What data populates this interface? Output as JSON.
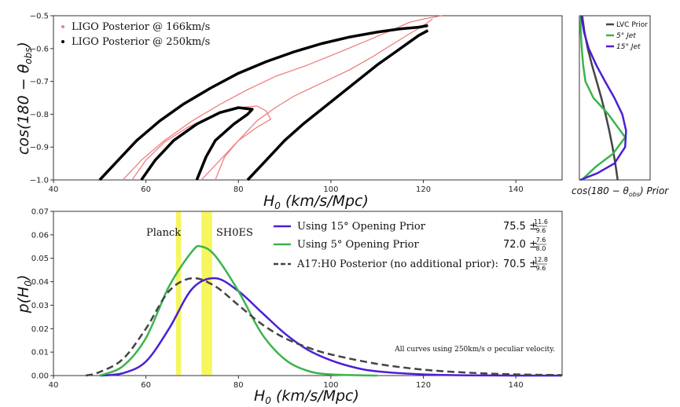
{
  "chart_data": [
    {
      "type": "contour",
      "xlabel": "H₀ (km/s/Mpc)",
      "xlabel_main": "H",
      "xlabel_sub": "0",
      "xlabel_rest": " (km/s/Mpc)",
      "ylabel": "cos(180 − θobs)",
      "ylabel_main": "cos(180 − θ",
      "ylabel_sub": "obs",
      "ylabel_rest": ")",
      "xlim": [
        40,
        150
      ],
      "ylim": [
        -1.0,
        -0.5
      ],
      "xticks": [
        "40",
        "60",
        "80",
        "100",
        "120",
        "140"
      ],
      "yticks": [
        "−1.0",
        "−0.9",
        "−0.8",
        "−0.7",
        "−0.6",
        "−0.5"
      ],
      "legend_position": "top-left",
      "series": [
        {
          "name": "LIGO Posterior @ 166km/s",
          "color": "#f08080",
          "contours": [
            [
              [
                55,
                -1.0
              ],
              [
                59,
                -0.94
              ],
              [
                64,
                -0.88
              ],
              [
                70,
                -0.82
              ],
              [
                76,
                -0.77
              ],
              [
                82,
                -0.725
              ],
              [
                88,
                -0.685
              ],
              [
                95,
                -0.65
              ],
              [
                102,
                -0.61
              ],
              [
                108,
                -0.575
              ],
              [
                113,
                -0.545
              ],
              [
                117,
                -0.52
              ],
              [
                120,
                -0.51
              ],
              [
                124,
                -0.5
              ]
            ],
            [
              [
                72,
                -1.0
              ],
              [
                76,
                -0.94
              ],
              [
                80,
                -0.88
              ],
              [
                84,
                -0.82
              ],
              [
                88,
                -0.78
              ],
              [
                92,
                -0.745
              ],
              [
                98,
                -0.705
              ],
              [
                104,
                -0.665
              ],
              [
                109,
                -0.625
              ],
              [
                113,
                -0.59
              ],
              [
                117,
                -0.555
              ],
              [
                120,
                -0.53
              ],
              [
                122,
                -0.51
              ]
            ],
            [
              [
                57,
                -1.0
              ],
              [
                60,
                -0.94
              ],
              [
                64,
                -0.885
              ],
              [
                69,
                -0.84
              ],
              [
                75,
                -0.8
              ],
              [
                80,
                -0.78
              ],
              [
                84,
                -0.775
              ],
              [
                86,
                -0.79
              ],
              [
                87,
                -0.815
              ],
              [
                84,
                -0.84
              ],
              [
                80,
                -0.88
              ],
              [
                77,
                -0.93
              ],
              [
                75,
                -1.0
              ]
            ]
          ]
        },
        {
          "name": "LIGO Posterior @ 250km/s",
          "color": "#000000",
          "contours": [
            [
              [
                50,
                -1.0
              ],
              [
                54,
                -0.94
              ],
              [
                58,
                -0.88
              ],
              [
                63,
                -0.82
              ],
              [
                68,
                -0.77
              ],
              [
                74,
                -0.72
              ],
              [
                80,
                -0.675
              ],
              [
                86,
                -0.64
              ],
              [
                92,
                -0.61
              ],
              [
                98,
                -0.585
              ],
              [
                104,
                -0.565
              ],
              [
                110,
                -0.55
              ],
              [
                115,
                -0.54
              ],
              [
                119,
                -0.535
              ],
              [
                121,
                -0.53
              ]
            ],
            [
              [
                82,
                -1.0
              ],
              [
                86,
                -0.94
              ],
              [
                90,
                -0.88
              ],
              [
                94,
                -0.83
              ],
              [
                98,
                -0.785
              ],
              [
                102,
                -0.74
              ],
              [
                106,
                -0.695
              ],
              [
                110,
                -0.65
              ],
              [
                114,
                -0.61
              ],
              [
                117,
                -0.58
              ],
              [
                119,
                -0.56
              ],
              [
                121,
                -0.545
              ]
            ],
            [
              [
                59,
                -1.0
              ],
              [
                62,
                -0.94
              ],
              [
                66,
                -0.88
              ],
              [
                71,
                -0.83
              ],
              [
                76,
                -0.795
              ],
              [
                80,
                -0.78
              ],
              [
                83,
                -0.785
              ],
              [
                82,
                -0.8
              ],
              [
                79,
                -0.83
              ],
              [
                75,
                -0.88
              ],
              [
                73,
                -0.93
              ],
              [
                71,
                -1.0
              ]
            ]
          ]
        }
      ]
    },
    {
      "type": "line",
      "xlabel": "cos(180 − θobs) Prior",
      "xlabel_main": "cos(180 − θ",
      "xlabel_sub": "obs",
      "xlabel_rest": ") Prior",
      "ylim": [
        -1.0,
        -0.5
      ],
      "legend_position": "top-right",
      "series": [
        {
          "name": "LVC Prior",
          "color": "#444444",
          "x": [
            0.06,
            0.11,
            0.18,
            0.27,
            0.37,
            0.47,
            0.56,
            0.64,
            0.71,
            0.77,
            0.82
          ],
          "y": [
            -0.5,
            -0.55,
            -0.6,
            -0.65,
            -0.7,
            -0.75,
            -0.8,
            -0.85,
            -0.9,
            -0.95,
            -1.0
          ]
        },
        {
          "name": "5° Jet",
          "color": "#3cb44b",
          "x": [
            0.02,
            0.03,
            0.05,
            0.08,
            0.13,
            0.3,
            0.62,
            0.98,
            0.72,
            0.35,
            0.05
          ],
          "y": [
            -0.5,
            -0.55,
            -0.6,
            -0.65,
            -0.7,
            -0.75,
            -0.8,
            -0.87,
            -0.92,
            -0.96,
            -1.0
          ]
        },
        {
          "name": "15° Jet",
          "color": "#4b1fd6",
          "x": [
            0.04,
            0.1,
            0.2,
            0.36,
            0.55,
            0.75,
            0.92,
            1.0,
            0.98,
            0.75,
            0.38,
            0.02
          ],
          "y": [
            -0.5,
            -0.55,
            -0.6,
            -0.65,
            -0.7,
            -0.75,
            -0.8,
            -0.85,
            -0.9,
            -0.95,
            -0.98,
            -1.0
          ]
        }
      ]
    },
    {
      "type": "line",
      "xlabel": "H₀ (km/s/Mpc)",
      "xlabel_main": "H",
      "xlabel_sub": "0",
      "xlabel_rest": " (km/s/Mpc)",
      "ylabel": "p(H₀)",
      "ylabel_main": "p(H",
      "ylabel_sub": "0",
      "ylabel_rest": ")",
      "xlim": [
        40,
        150
      ],
      "ylim": [
        0,
        0.07
      ],
      "xticks": [
        "40",
        "60",
        "80",
        "100",
        "120",
        "140"
      ],
      "yticks": [
        "0.00",
        "0.01",
        "0.02",
        "0.03",
        "0.04",
        "0.05",
        "0.06",
        "0.07"
      ],
      "legend_position": "top-right",
      "bands": [
        {
          "label": "Planck",
          "x0": 66.5,
          "x1": 67.6,
          "color": "#f5f542"
        },
        {
          "label": "SH0ES",
          "x0": 72.0,
          "x1": 74.3,
          "color": "#f5f542"
        }
      ],
      "series": [
        {
          "name": "Using 15° Opening Prior",
          "color": "#4b1fd6",
          "dashed": false,
          "estimate": "75.5",
          "upper": "11.6",
          "lower": "9.6",
          "x": [
            50,
            55,
            60,
            65,
            70,
            75,
            80,
            85,
            90,
            95,
            100,
            105,
            110,
            120,
            130,
            150
          ],
          "y": [
            0.0,
            0.001,
            0.006,
            0.02,
            0.037,
            0.0415,
            0.036,
            0.027,
            0.018,
            0.011,
            0.0065,
            0.0035,
            0.0018,
            0.0005,
            0.0001,
            0.0
          ]
        },
        {
          "name": "Using 5° Opening Prior",
          "color": "#3cb44b",
          "dashed": false,
          "estimate": "72.0",
          "upper": "7.6",
          "lower": "8.0",
          "x": [
            50,
            55,
            60,
            65,
            70,
            72,
            75,
            80,
            85,
            90,
            95,
            100,
            110
          ],
          "y": [
            0.0,
            0.004,
            0.016,
            0.038,
            0.053,
            0.055,
            0.051,
            0.036,
            0.018,
            0.007,
            0.002,
            0.0005,
            0.0
          ]
        },
        {
          "name": "A17:H0 Posterior (no additional prior):",
          "color": "#444444",
          "dashed": true,
          "estimate": "70.5",
          "upper": "12.8",
          "lower": "9.6",
          "x": [
            47,
            50,
            55,
            60,
            65,
            70,
            75,
            80,
            85,
            90,
            95,
            100,
            110,
            120,
            130,
            140,
            150
          ],
          "y": [
            0.0,
            0.0015,
            0.007,
            0.02,
            0.036,
            0.0415,
            0.038,
            0.03,
            0.022,
            0.016,
            0.012,
            0.009,
            0.005,
            0.0025,
            0.0012,
            0.0005,
            0.0002
          ]
        }
      ],
      "annotation": "All curves using 250km/s σ peculiar velocity."
    }
  ]
}
